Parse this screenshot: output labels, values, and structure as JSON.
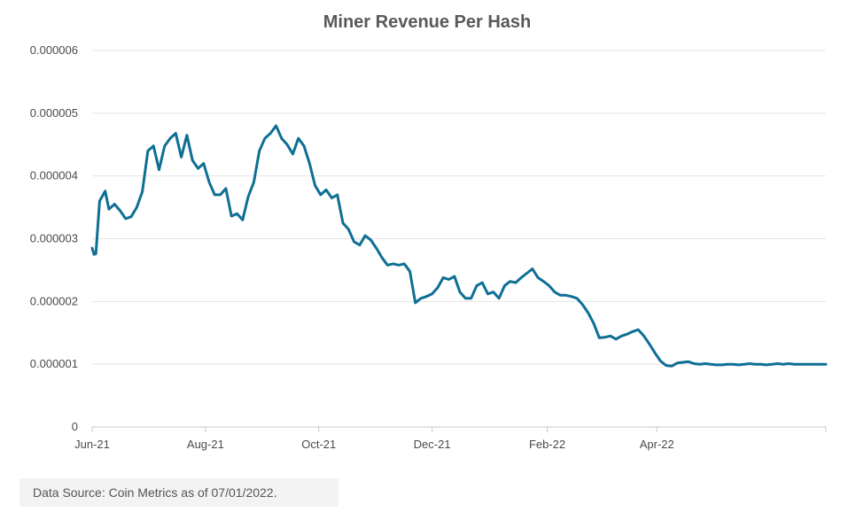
{
  "chart_data": {
    "type": "line",
    "title": "Miner Revenue Per Hash",
    "xlabel": "",
    "ylabel": "",
    "ylim": [
      0,
      6e-06
    ],
    "y_ticks": [
      "0.000006",
      "0.000005",
      "0.000004",
      "0.000003",
      "0.000002",
      "0.000001",
      "0"
    ],
    "x_ticks": [
      "Jun-21",
      "Aug-21",
      "Oct-21",
      "Dec-21",
      "Feb-22",
      "Apr-22"
    ],
    "grid": true,
    "legend": "none",
    "line_color": "#0e6f94",
    "series": [
      {
        "x": [
          "2021-06-01",
          "2021-06-02",
          "2021-06-03",
          "2021-06-05",
          "2021-06-08",
          "2021-06-10",
          "2021-06-13",
          "2021-06-16",
          "2021-06-19",
          "2021-06-22",
          "2021-06-25",
          "2021-06-28",
          "2021-07-01",
          "2021-07-04",
          "2021-07-07",
          "2021-07-10",
          "2021-07-13",
          "2021-07-16",
          "2021-07-19",
          "2021-07-22",
          "2021-07-25",
          "2021-07-28",
          "2021-07-31",
          "2021-08-03",
          "2021-08-06",
          "2021-08-09",
          "2021-08-12",
          "2021-08-15",
          "2021-08-18",
          "2021-08-21",
          "2021-08-24",
          "2021-08-27",
          "2021-08-30",
          "2021-09-02",
          "2021-09-05",
          "2021-09-08",
          "2021-09-11",
          "2021-09-14",
          "2021-09-17",
          "2021-09-20",
          "2021-09-23",
          "2021-09-26",
          "2021-09-29",
          "2021-10-02",
          "2021-10-05",
          "2021-10-08",
          "2021-10-11",
          "2021-10-14",
          "2021-10-17",
          "2021-10-20",
          "2021-10-23",
          "2021-10-26",
          "2021-10-29",
          "2021-11-01",
          "2021-11-04",
          "2021-11-07",
          "2021-11-10",
          "2021-11-13",
          "2021-11-16",
          "2021-11-19",
          "2021-11-22",
          "2021-11-25",
          "2021-11-28",
          "2021-12-01",
          "2021-12-04",
          "2021-12-07",
          "2021-12-10",
          "2021-12-13",
          "2021-12-16",
          "2021-12-19",
          "2021-12-22",
          "2021-12-25",
          "2021-12-28",
          "2021-12-31",
          "2022-01-03",
          "2022-01-06",
          "2022-01-09",
          "2022-01-12",
          "2022-01-15",
          "2022-01-18",
          "2022-01-21",
          "2022-01-24",
          "2022-01-27",
          "2022-01-30",
          "2022-02-02",
          "2022-02-05",
          "2022-02-08",
          "2022-02-11",
          "2022-02-14",
          "2022-02-17",
          "2022-02-20",
          "2022-02-23",
          "2022-02-26",
          "2022-03-01",
          "2022-03-04",
          "2022-03-07",
          "2022-03-10",
          "2022-03-13",
          "2022-03-16",
          "2022-03-19",
          "2022-03-22",
          "2022-03-25",
          "2022-03-28",
          "2022-03-31",
          "2022-04-03",
          "2022-04-06",
          "2022-04-09",
          "2022-04-12",
          "2022-04-15",
          "2022-04-18",
          "2022-04-21",
          "2022-04-24",
          "2022-04-27",
          "2022-04-30",
          "2022-05-03",
          "2022-05-06",
          "2022-05-09",
          "2022-05-12",
          "2022-05-15",
          "2022-05-18",
          "2022-05-21",
          "2022-05-24",
          "2022-05-27",
          "2022-05-30",
          "2022-06-02",
          "2022-06-05",
          "2022-06-08",
          "2022-06-11",
          "2022-06-14",
          "2022-06-17",
          "2022-06-20",
          "2022-06-23",
          "2022-06-26",
          "2022-06-29",
          "2022-07-01"
        ],
        "y": [
          2.85e-06,
          2.75e-06,
          2.76e-06,
          3.6e-06,
          3.76e-06,
          3.47e-06,
          3.55e-06,
          3.45e-06,
          3.32e-06,
          3.35e-06,
          3.5e-06,
          3.75e-06,
          4.4e-06,
          4.48e-06,
          4.1e-06,
          4.48e-06,
          4.6e-06,
          4.68e-06,
          4.3e-06,
          4.65e-06,
          4.25e-06,
          4.12e-06,
          4.2e-06,
          3.9e-06,
          3.7e-06,
          3.7e-06,
          3.8e-06,
          3.36e-06,
          3.4e-06,
          3.3e-06,
          3.67e-06,
          3.9e-06,
          4.4e-06,
          4.6e-06,
          4.68e-06,
          4.8e-06,
          4.6e-06,
          4.5e-06,
          4.35e-06,
          4.6e-06,
          4.48e-06,
          4.2e-06,
          3.85e-06,
          3.7e-06,
          3.78e-06,
          3.65e-06,
          3.7e-06,
          3.25e-06,
          3.15e-06,
          2.95e-06,
          2.9e-06,
          3.05e-06,
          2.98e-06,
          2.85e-06,
          2.7e-06,
          2.58e-06,
          2.6e-06,
          2.58e-06,
          2.6e-06,
          2.48e-06,
          1.98e-06,
          2.05e-06,
          2.08e-06,
          2.12e-06,
          2.22e-06,
          2.38e-06,
          2.35e-06,
          2.4e-06,
          2.15e-06,
          2.05e-06,
          2.05e-06,
          2.25e-06,
          2.3e-06,
          2.12e-06,
          2.15e-06,
          2.05e-06,
          2.25e-06,
          2.32e-06,
          2.3e-06,
          2.38e-06,
          2.45e-06,
          2.52e-06,
          2.38e-06,
          2.32e-06,
          2.25e-06,
          2.15e-06,
          2.1e-06,
          2.1e-06,
          2.08e-06,
          2.05e-06,
          1.95e-06,
          1.82e-06,
          1.65e-06,
          1.42e-06,
          1.43e-06,
          1.45e-06,
          1.4e-06,
          1.45e-06,
          1.48e-06,
          1.52e-06,
          1.55e-06,
          1.45e-06,
          1.32e-06,
          1.18e-06,
          1.05e-06,
          9.8e-07,
          9.7e-07,
          1.02e-06,
          1.03e-06,
          1.04e-06,
          1.01e-06,
          1e-06,
          1.01e-06,
          1e-06,
          9.9e-07,
          9.9e-07,
          1e-06,
          1e-06,
          9.9e-07,
          1e-06,
          1.01e-06,
          1e-06,
          1e-06,
          9.9e-07,
          1e-06,
          1.01e-06,
          1e-06,
          1.01e-06,
          1e-06,
          1e-06,
          1e-06,
          1e-06,
          1e-06,
          1e-06,
          1e-06
        ]
      }
    ]
  },
  "source": "Data Source: Coin Metrics as of 07/01/2022."
}
